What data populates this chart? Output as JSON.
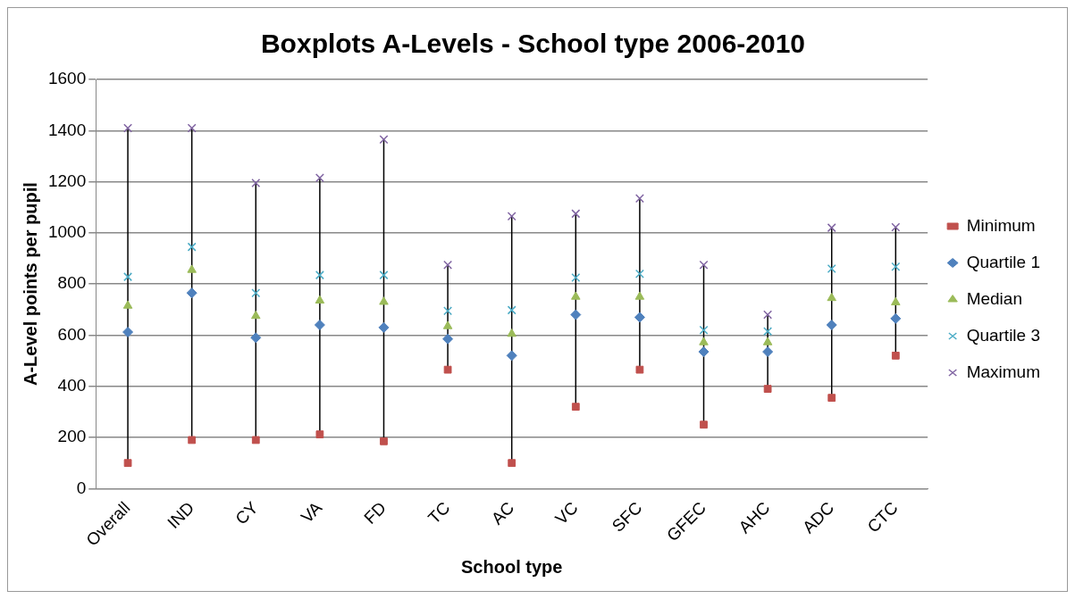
{
  "chart_data": {
    "type": "line",
    "title": "Boxplots A-Levels - School type 2006-2010",
    "xlabel": "School type",
    "ylabel": "A-Level points per pupil",
    "categories": [
      "Overall",
      "IND",
      "CY",
      "VA",
      "FD",
      "TC",
      "AC",
      "VC",
      "SFC",
      "GFEC",
      "AHC",
      "ADC",
      "CTC"
    ],
    "series": [
      {
        "name": "Minimum",
        "type": "scatter",
        "marker": "square",
        "color": "#c0504d",
        "values": [
          100,
          190,
          190,
          212,
          185,
          465,
          100,
          320,
          465,
          250,
          390,
          355,
          520
        ]
      },
      {
        "name": "Quartile 1",
        "type": "scatter",
        "marker": "diamond",
        "color": "#4f81bd",
        "values": [
          612,
          765,
          590,
          640,
          630,
          585,
          520,
          680,
          670,
          535,
          535,
          640,
          665
        ]
      },
      {
        "name": "Median",
        "type": "scatter",
        "marker": "triangle",
        "color": "#9bbb59",
        "values": [
          715,
          855,
          675,
          735,
          730,
          635,
          605,
          750,
          750,
          572,
          572,
          745,
          728
        ]
      },
      {
        "name": "Quartile 3",
        "type": "scatter",
        "marker": "cross",
        "color": "#4bacc6",
        "values": [
          828,
          945,
          765,
          835,
          835,
          695,
          698,
          825,
          840,
          620,
          615,
          860,
          868
        ]
      },
      {
        "name": "Maximum",
        "type": "scatter",
        "marker": "cross",
        "color": "#8064a2",
        "values": [
          1410,
          1410,
          1195,
          1215,
          1365,
          875,
          1065,
          1075,
          1135,
          875,
          680,
          1020,
          1022
        ]
      }
    ],
    "ylim": [
      0,
      1600
    ],
    "yticks": [
      0,
      200,
      400,
      600,
      800,
      1000,
      1200,
      1400,
      1600
    ],
    "grid": "y",
    "legend": "right"
  }
}
